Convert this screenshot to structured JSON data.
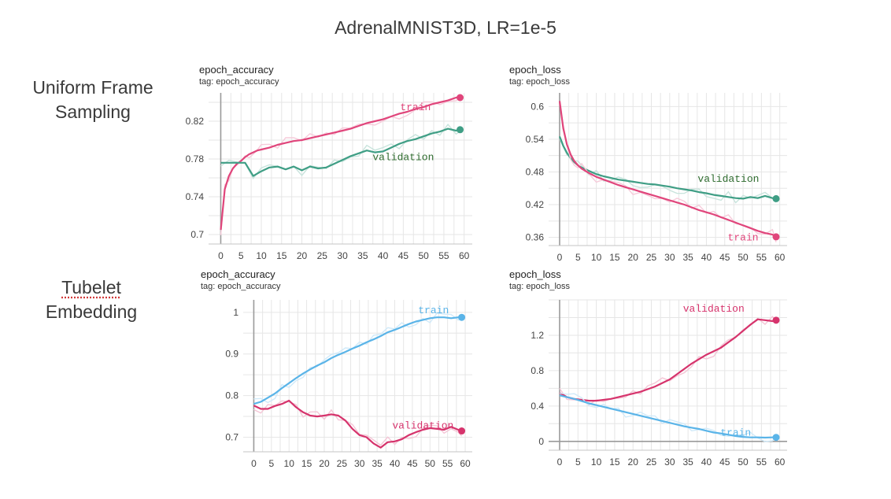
{
  "title": "AdrenalMNIST3D, LR=1e-5",
  "rows": [
    {
      "line1": "Uniform Frame",
      "line2": "Sampling"
    },
    {
      "line1": "Tubelet",
      "line2": "Embedding"
    }
  ],
  "colors": {
    "train_pink": "#e0457b",
    "validation_green": "#3f9e85",
    "train_blue": "#5ab4e8",
    "validation_pink": "#d6336c",
    "validation_label_green": "#2e6b2e"
  },
  "chart_data": [
    {
      "type": "line",
      "title": "epoch_accuracy",
      "subtitle": "tag: epoch_accuracy",
      "xlim": [
        -3,
        62
      ],
      "ylim": [
        0.69,
        0.85
      ],
      "xticks": [
        0,
        5,
        10,
        15,
        20,
        25,
        30,
        35,
        40,
        45,
        50,
        55,
        60
      ],
      "yticks": [
        0.7,
        0.74,
        0.78,
        0.82
      ],
      "ytick_labels": [
        "0.7",
        "0.74",
        "0.78",
        "0.82"
      ],
      "grid": true,
      "series": [
        {
          "name": "train",
          "color": "#e0457b",
          "label_anchor": [
            48,
            0.835
          ],
          "x": [
            0,
            1,
            2,
            3,
            4,
            5,
            6,
            7,
            8,
            9,
            10,
            12,
            14,
            16,
            18,
            20,
            22,
            24,
            26,
            28,
            30,
            32,
            34,
            36,
            38,
            40,
            42,
            44,
            46,
            48,
            50,
            52,
            54,
            56,
            58,
            59
          ],
          "y": [
            0.705,
            0.748,
            0.762,
            0.77,
            0.775,
            0.778,
            0.782,
            0.785,
            0.787,
            0.789,
            0.79,
            0.792,
            0.795,
            0.797,
            0.799,
            0.8,
            0.802,
            0.804,
            0.806,
            0.808,
            0.81,
            0.812,
            0.815,
            0.818,
            0.82,
            0.822,
            0.825,
            0.828,
            0.83,
            0.833,
            0.835,
            0.838,
            0.84,
            0.842,
            0.845,
            0.845
          ]
        },
        {
          "name": "validation",
          "color": "#3f9e85",
          "label_anchor": [
            45,
            0.782
          ],
          "x": [
            0,
            2,
            4,
            6,
            8,
            10,
            12,
            14,
            16,
            18,
            20,
            22,
            24,
            26,
            28,
            30,
            32,
            34,
            36,
            38,
            40,
            42,
            44,
            46,
            48,
            50,
            52,
            54,
            56,
            58,
            59
          ],
          "y": [
            0.776,
            0.776,
            0.776,
            0.776,
            0.762,
            0.767,
            0.771,
            0.772,
            0.769,
            0.772,
            0.768,
            0.772,
            0.77,
            0.771,
            0.775,
            0.779,
            0.783,
            0.786,
            0.789,
            0.787,
            0.788,
            0.792,
            0.796,
            0.799,
            0.801,
            0.804,
            0.807,
            0.809,
            0.812,
            0.81,
            0.811
          ]
        }
      ]
    },
    {
      "type": "line",
      "title": "epoch_loss",
      "subtitle": "tag: epoch_loss",
      "xlim": [
        -3,
        62
      ],
      "ylim": [
        0.345,
        0.625
      ],
      "xticks": [
        0,
        5,
        10,
        15,
        20,
        25,
        30,
        35,
        40,
        45,
        50,
        55,
        60
      ],
      "yticks": [
        0.36,
        0.42,
        0.48,
        0.54,
        0.6
      ],
      "ytick_labels": [
        "0.36",
        "0.42",
        "0.48",
        "0.54",
        "0.6"
      ],
      "grid": true,
      "series": [
        {
          "name": "validation",
          "color": "#3f9e85",
          "label_anchor": [
            46,
            0.468
          ],
          "x": [
            0,
            1,
            2,
            3,
            4,
            5,
            6,
            8,
            10,
            12,
            14,
            16,
            18,
            20,
            22,
            24,
            26,
            28,
            30,
            32,
            34,
            36,
            38,
            40,
            42,
            44,
            46,
            48,
            50,
            52,
            54,
            56,
            58,
            59
          ],
          "y": [
            0.545,
            0.528,
            0.515,
            0.505,
            0.498,
            0.492,
            0.488,
            0.482,
            0.476,
            0.472,
            0.469,
            0.466,
            0.464,
            0.462,
            0.46,
            0.458,
            0.457,
            0.455,
            0.453,
            0.45,
            0.448,
            0.446,
            0.443,
            0.441,
            0.438,
            0.436,
            0.434,
            0.432,
            0.431,
            0.434,
            0.432,
            0.436,
            0.432,
            0.431
          ]
        },
        {
          "name": "train",
          "color": "#e0457b",
          "label_anchor": [
            50,
            0.36
          ],
          "x": [
            0,
            1,
            2,
            3,
            4,
            5,
            6,
            8,
            10,
            12,
            14,
            16,
            18,
            20,
            22,
            24,
            26,
            28,
            30,
            32,
            34,
            36,
            38,
            40,
            42,
            44,
            46,
            48,
            50,
            52,
            54,
            56,
            58,
            59
          ],
          "y": [
            0.61,
            0.56,
            0.53,
            0.512,
            0.5,
            0.492,
            0.486,
            0.478,
            0.471,
            0.466,
            0.461,
            0.456,
            0.452,
            0.448,
            0.444,
            0.44,
            0.436,
            0.432,
            0.428,
            0.424,
            0.42,
            0.415,
            0.41,
            0.406,
            0.402,
            0.397,
            0.392,
            0.387,
            0.382,
            0.377,
            0.372,
            0.368,
            0.365,
            0.361
          ]
        }
      ]
    },
    {
      "type": "line",
      "title": "epoch_accuracy",
      "subtitle": "tag: epoch_accuracy",
      "xlim": [
        -3,
        62
      ],
      "ylim": [
        0.665,
        1.03
      ],
      "xticks": [
        0,
        5,
        10,
        15,
        20,
        25,
        30,
        35,
        40,
        45,
        50,
        55,
        60
      ],
      "yticks": [
        0.7,
        0.8,
        0.9,
        1
      ],
      "ytick_labels": [
        "0.7",
        "0.8",
        "0.9",
        "1"
      ],
      "grid": true,
      "series": [
        {
          "name": "train",
          "color": "#5ab4e8",
          "label_anchor": [
            51,
            1.005
          ],
          "x": [
            0,
            2,
            4,
            6,
            8,
            10,
            12,
            14,
            16,
            18,
            20,
            22,
            24,
            26,
            28,
            30,
            32,
            34,
            36,
            38,
            40,
            42,
            44,
            46,
            48,
            50,
            52,
            54,
            56,
            58,
            59
          ],
          "y": [
            0.78,
            0.785,
            0.795,
            0.805,
            0.818,
            0.83,
            0.842,
            0.853,
            0.863,
            0.872,
            0.88,
            0.89,
            0.898,
            0.905,
            0.913,
            0.92,
            0.928,
            0.935,
            0.943,
            0.952,
            0.958,
            0.965,
            0.972,
            0.978,
            0.982,
            0.986,
            0.988,
            0.988,
            0.986,
            0.988,
            0.988
          ]
        },
        {
          "name": "validation",
          "color": "#d6336c",
          "label_anchor": [
            48,
            0.728
          ],
          "x": [
            0,
            2,
            4,
            6,
            8,
            10,
            12,
            14,
            16,
            18,
            20,
            22,
            24,
            26,
            28,
            30,
            32,
            34,
            36,
            38,
            40,
            42,
            44,
            46,
            48,
            50,
            52,
            54,
            56,
            58,
            59
          ],
          "y": [
            0.776,
            0.768,
            0.768,
            0.775,
            0.78,
            0.788,
            0.772,
            0.76,
            0.752,
            0.75,
            0.752,
            0.755,
            0.752,
            0.74,
            0.72,
            0.705,
            0.7,
            0.685,
            0.675,
            0.688,
            0.69,
            0.695,
            0.705,
            0.712,
            0.718,
            0.722,
            0.72,
            0.718,
            0.725,
            0.718,
            0.715
          ]
        }
      ]
    },
    {
      "type": "line",
      "title": "epoch_loss",
      "subtitle": "tag: epoch_loss",
      "xlim": [
        -3,
        62
      ],
      "ylim": [
        -0.1,
        1.6
      ],
      "xticks": [
        0,
        5,
        10,
        15,
        20,
        25,
        30,
        35,
        40,
        45,
        50,
        55,
        60
      ],
      "yticks": [
        0,
        0.4,
        0.8,
        1.2
      ],
      "ytick_labels": [
        "0",
        "0.4",
        "0.8",
        "1.2"
      ],
      "grid": true,
      "series": [
        {
          "name": "validation",
          "color": "#d6336c",
          "label_anchor": [
            42,
            1.5
          ],
          "x": [
            0,
            2,
            4,
            6,
            8,
            10,
            12,
            14,
            16,
            18,
            20,
            22,
            24,
            26,
            28,
            30,
            32,
            34,
            36,
            38,
            40,
            42,
            44,
            46,
            48,
            50,
            52,
            54,
            56,
            58,
            59
          ],
          "y": [
            0.55,
            0.5,
            0.48,
            0.47,
            0.46,
            0.46,
            0.47,
            0.48,
            0.5,
            0.52,
            0.54,
            0.56,
            0.59,
            0.62,
            0.66,
            0.7,
            0.76,
            0.82,
            0.88,
            0.93,
            0.98,
            1.02,
            1.06,
            1.12,
            1.18,
            1.25,
            1.32,
            1.38,
            1.37,
            1.36,
            1.37
          ]
        },
        {
          "name": "train",
          "color": "#5ab4e8",
          "label_anchor": [
            48,
            0.1
          ],
          "x": [
            0,
            2,
            4,
            6,
            8,
            10,
            12,
            14,
            16,
            18,
            20,
            22,
            24,
            26,
            28,
            30,
            32,
            34,
            36,
            38,
            40,
            42,
            44,
            46,
            48,
            50,
            52,
            54,
            56,
            58,
            59
          ],
          "y": [
            0.52,
            0.5,
            0.48,
            0.455,
            0.43,
            0.41,
            0.39,
            0.37,
            0.35,
            0.33,
            0.31,
            0.29,
            0.27,
            0.25,
            0.23,
            0.21,
            0.19,
            0.17,
            0.155,
            0.14,
            0.12,
            0.1,
            0.09,
            0.075,
            0.06,
            0.05,
            0.045,
            0.045,
            0.042,
            0.045,
            0.045
          ]
        }
      ]
    }
  ]
}
